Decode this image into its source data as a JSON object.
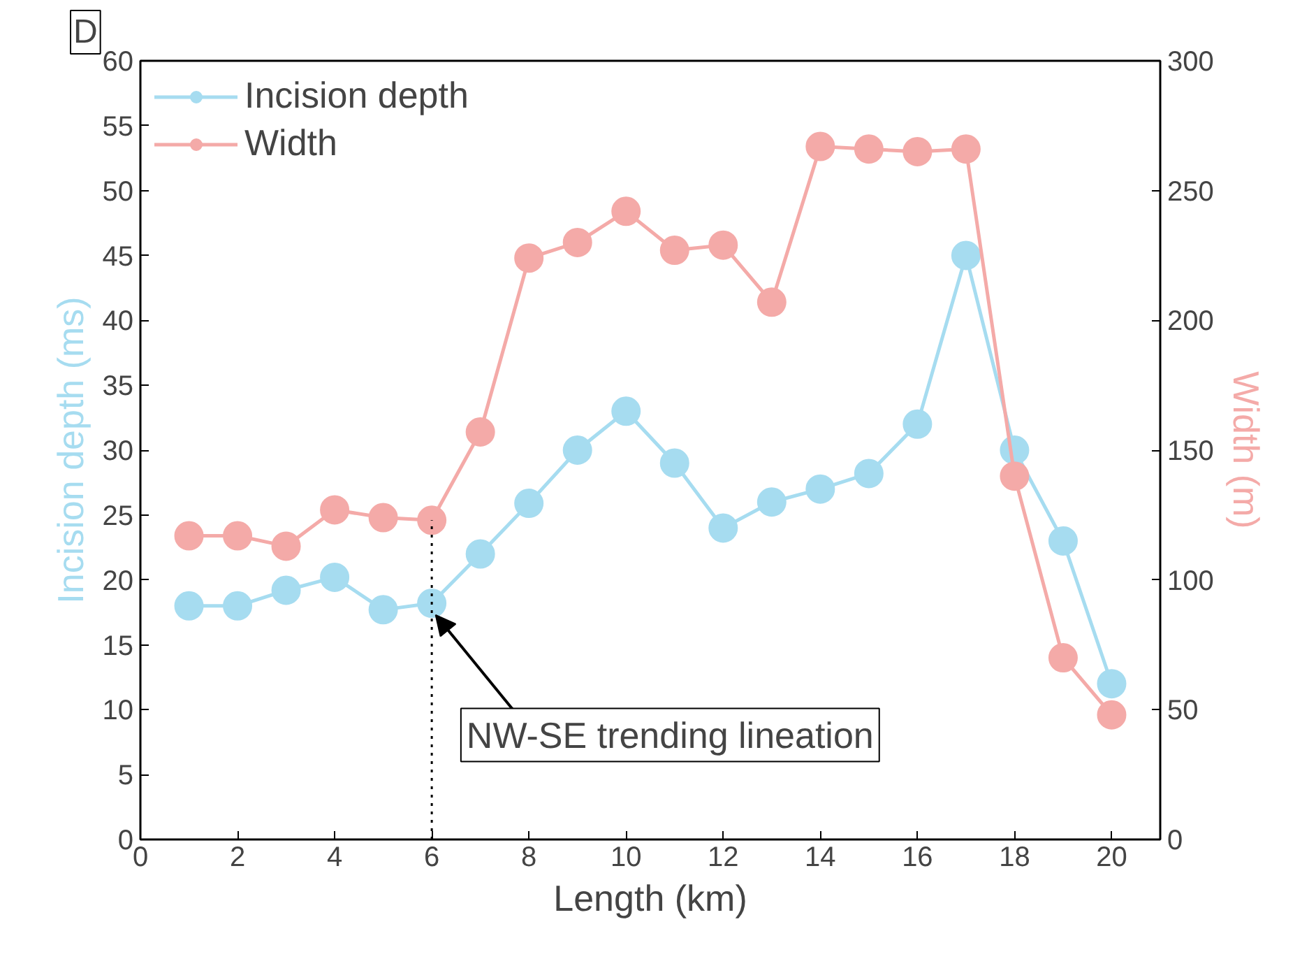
{
  "chart_data": {
    "type": "line",
    "xlabel": "Length (km)",
    "ylabel": "Incision depth (ms)",
    "y2label": "Width (m)",
    "x": [
      1,
      2,
      3,
      4,
      5,
      6,
      7,
      8,
      9,
      10,
      11,
      12,
      13,
      14,
      15,
      16,
      17,
      18,
      19,
      20
    ],
    "series": [
      {
        "name": "Incision depth",
        "color": "#a6dcf0",
        "values": [
          18,
          18,
          19.2,
          20.2,
          17.7,
          18.2,
          22,
          25.9,
          30,
          33,
          29,
          24,
          26,
          27,
          28.2,
          32,
          45,
          30,
          23,
          12
        ]
      },
      {
        "name": "Width",
        "color": "#f4aaa8",
        "axis": "y2",
        "values": [
          117,
          117,
          113,
          127,
          124,
          123,
          157,
          224,
          230,
          242,
          227,
          229,
          207,
          267,
          266,
          265,
          266,
          140,
          70,
          48
        ]
      }
    ],
    "xlim": [
      0,
      21
    ],
    "xticks": [
      0,
      2,
      4,
      6,
      8,
      10,
      12,
      14,
      16,
      18,
      20
    ],
    "ylim": [
      0,
      60
    ],
    "yticks": [
      0,
      5,
      10,
      15,
      20,
      25,
      30,
      35,
      40,
      45,
      50,
      55,
      60
    ],
    "y2lim": [
      0,
      300
    ],
    "y2ticks": [
      0,
      50,
      100,
      150,
      200,
      250,
      300
    ],
    "annotations": [
      "D",
      {
        "text": "NW-SE trending lineation",
        "x": 6,
        "y": 18.2
      }
    ],
    "ref_lines": [
      {
        "axis": "x",
        "value": 6,
        "line_style": "dotted",
        "color": "#000000"
      }
    ],
    "marker": "circle",
    "line_style": "solid",
    "legend": "top left",
    "grid": false
  }
}
